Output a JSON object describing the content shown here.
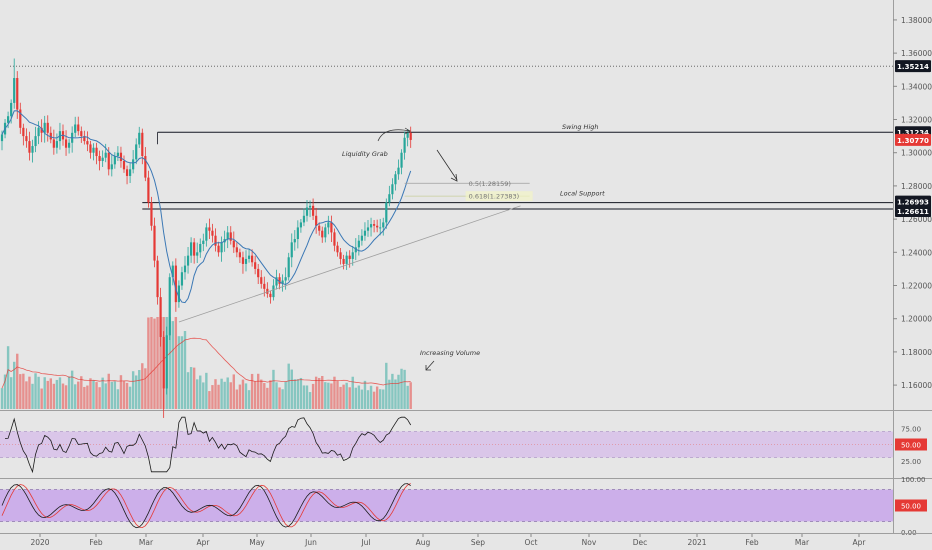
{
  "chart_data": {
    "type": "candlestick",
    "instrument": "",
    "timeframe": "1D",
    "x_axis": {
      "tick_labels": [
        "2020",
        "Feb",
        "Mar",
        "Apr",
        "May",
        "Jun",
        "Jul",
        "Aug",
        "Sep",
        "Oct",
        "Nov",
        "Dec",
        "2021",
        "Feb",
        "Mar",
        "Apr"
      ]
    },
    "price_axis": {
      "ticks": [
        "1.38000",
        "1.36000",
        "1.34000",
        "1.32000",
        "1.30000",
        "1.28000",
        "1.26000",
        "1.24000",
        "1.22000",
        "1.20000",
        "1.18000",
        "1.16000"
      ],
      "range": [
        1.145,
        1.392
      ]
    },
    "price_labels": [
      {
        "value": 1.35214,
        "text": "1.35214",
        "style": "dark"
      },
      {
        "value": 1.31234,
        "text": "1.31234",
        "style": "dark"
      },
      {
        "value": 1.3077,
        "text": "1.30770",
        "style": "red"
      },
      {
        "value": 1.26993,
        "text": "1.26993",
        "style": "dark"
      },
      {
        "value": 1.26611,
        "text": "1.26611",
        "style": "dark"
      }
    ],
    "levels": [
      {
        "name": "Swing High",
        "value": 1.31234
      },
      {
        "name": "Local Support",
        "value": 1.26993
      },
      {
        "name": "",
        "value": 1.26611
      }
    ],
    "fibonacci": [
      {
        "label": "0.5(1.28159)",
        "value": 1.28159
      },
      {
        "label": "0.618(1.27383)",
        "value": 1.27383
      }
    ],
    "annotations": [
      "Liquidity Grab",
      "Swing High",
      "Local Support",
      "Increasing Volume"
    ],
    "price_series_close_approx": [
      1.311,
      1.318,
      1.322,
      1.33,
      1.345,
      1.326,
      1.315,
      1.31,
      1.307,
      1.3,
      1.304,
      1.31,
      1.315,
      1.312,
      1.318,
      1.312,
      1.308,
      1.303,
      1.307,
      1.313,
      1.308,
      1.303,
      1.306,
      1.312,
      1.317,
      1.313,
      1.31,
      1.307,
      1.305,
      1.3,
      1.303,
      1.298,
      1.295,
      1.297,
      1.3,
      1.29,
      1.293,
      1.298,
      1.3,
      1.295,
      1.29,
      1.286,
      1.29,
      1.296,
      1.305,
      1.312,
      1.298,
      1.285,
      1.27,
      1.256,
      1.235,
      1.213,
      1.189,
      1.158,
      1.19,
      1.225,
      1.232,
      1.21,
      1.22,
      1.228,
      1.232,
      1.238,
      1.246,
      1.238,
      1.24,
      1.245,
      1.247,
      1.255,
      1.253,
      1.25,
      1.244,
      1.24,
      1.246,
      1.248,
      1.252,
      1.247,
      1.243,
      1.24,
      1.237,
      1.233,
      1.236,
      1.238,
      1.234,
      1.23,
      1.225,
      1.221,
      1.218,
      1.215,
      1.213,
      1.22,
      1.225,
      1.221,
      1.223,
      1.225,
      1.237,
      1.246,
      1.248,
      1.255,
      1.258,
      1.262,
      1.267,
      1.268,
      1.262,
      1.256,
      1.253,
      1.249,
      1.255,
      1.258,
      1.252,
      1.244,
      1.24,
      1.236,
      1.233,
      1.238,
      1.236,
      1.24,
      1.243,
      1.247,
      1.25,
      1.253,
      1.255,
      1.257,
      1.256,
      1.255,
      1.255,
      1.258,
      1.27,
      1.275,
      1.281,
      1.287,
      1.291,
      1.3,
      1.309,
      1.312,
      1.3077
    ],
    "moving_average": "20-period, blue, on price",
    "volume": {
      "bars_count": 137,
      "colors": {
        "up": "#7aa99f",
        "down": "#ec8989"
      },
      "average_line_color": "#e53935"
    },
    "rsi": {
      "ticks": [
        "75.00",
        "25.00"
      ],
      "current": "50.00",
      "range": [
        0,
        100
      ],
      "band": [
        30,
        70
      ]
    },
    "stochastic": {
      "ticks": [
        "100.00",
        "0.00"
      ],
      "current": "50.00",
      "range": [
        0,
        100
      ],
      "band": [
        20,
        80
      ]
    },
    "colors": {
      "background": "#e6e6e6",
      "up_candle": "#26a69a",
      "down_candle": "#e53935",
      "ma": "#3b78b5",
      "rsi_band": "#d7bfe9",
      "stoch_band": "#c7a4ea",
      "tag_dark": "#131722",
      "tag_red": "#e53935"
    }
  }
}
